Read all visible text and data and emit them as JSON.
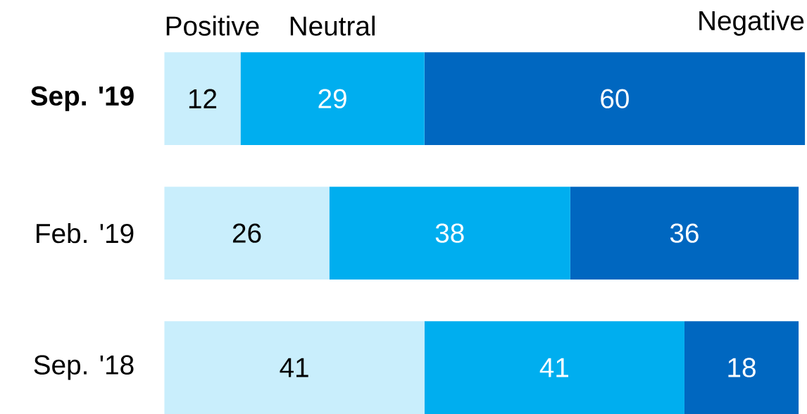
{
  "chart_data": {
    "type": "bar",
    "orientation": "horizontal",
    "stacked": true,
    "data_labels": true,
    "categories": [
      "**Sep. '19**",
      "Feb. '19",
      "Sep. '18"
    ],
    "series": [
      {
        "name": "Positive",
        "color": "#c9eefc",
        "values": [
          12,
          26,
          41
        ]
      },
      {
        "name": "Neutral",
        "color": "#00aeef",
        "values": [
          29,
          38,
          41
        ]
      },
      {
        "name": "Negative",
        "color": "#0067c0",
        "values": [
          60,
          36,
          18
        ]
      }
    ]
  }
}
